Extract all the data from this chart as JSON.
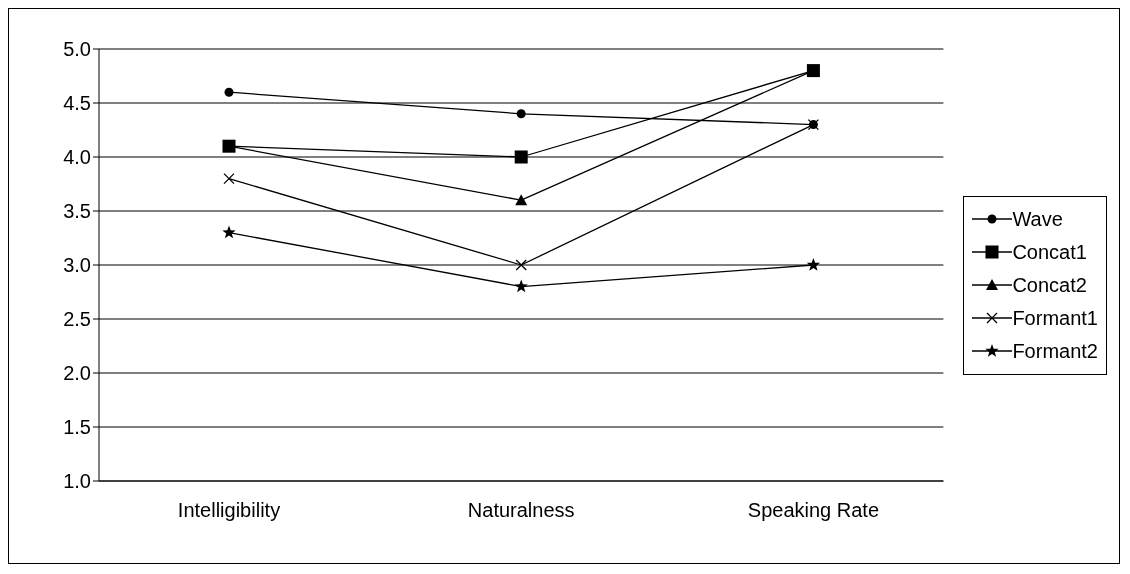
{
  "chart_data": {
    "type": "line",
    "categories": [
      "Intelligibility",
      "Naturalness",
      "Speaking Rate"
    ],
    "series": [
      {
        "name": "Wave",
        "color": "#000000",
        "marker": "circle",
        "values": [
          4.6,
          4.4,
          4.3
        ]
      },
      {
        "name": "Concat1",
        "color": "#000000",
        "marker": "square",
        "values": [
          4.1,
          4.0,
          4.8
        ]
      },
      {
        "name": "Concat2",
        "color": "#000000",
        "marker": "triangle",
        "values": [
          4.1,
          3.6,
          4.8
        ]
      },
      {
        "name": "Formant1",
        "color": "#000000",
        "marker": "cross",
        "values": [
          3.8,
          3.0,
          4.3
        ]
      },
      {
        "name": "Formant2",
        "color": "#000000",
        "marker": "star",
        "values": [
          3.3,
          2.8,
          3.0
        ]
      }
    ],
    "ylim": [
      1.0,
      5.0
    ],
    "yticks": [
      {
        "value": 1,
        "label": "1.0"
      },
      {
        "value": 1.5,
        "label": "1.5"
      },
      {
        "value": 2,
        "label": "2.0"
      },
      {
        "value": 2.5,
        "label": "2.5"
      },
      {
        "value": 3,
        "label": "3.0"
      },
      {
        "value": 3.5,
        "label": "3.5"
      },
      {
        "value": 4,
        "label": "4.0"
      },
      {
        "value": 4.5,
        "label": "4.5"
      },
      {
        "value": 5,
        "label": "5.0"
      }
    ],
    "grid": "y",
    "legend": "right",
    "line_style": "solid"
  }
}
